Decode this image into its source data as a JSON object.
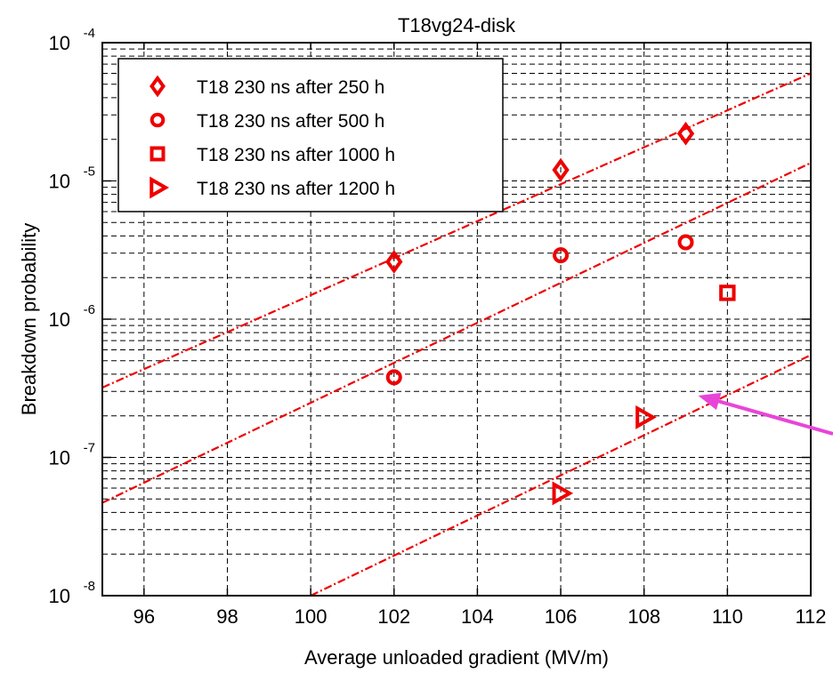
{
  "chart_data": {
    "type": "scatter",
    "title": "T18vg24-disk",
    "xlabel": "Average unloaded gradient (MV/m)",
    "ylabel": "Breakdown probability",
    "xlim": [
      95,
      112
    ],
    "ylim": [
      1e-08,
      0.0001
    ],
    "yscale": "log",
    "grid": true,
    "legend_position": "top-left",
    "x_ticks": [
      96,
      98,
      100,
      102,
      104,
      106,
      108,
      110,
      112
    ],
    "y_ticks": [
      {
        "value": 1e-08,
        "base": "10",
        "exp": "-8"
      },
      {
        "value": 1e-07,
        "base": "10",
        "exp": "-7"
      },
      {
        "value": 1e-06,
        "base": "10",
        "exp": "-6"
      },
      {
        "value": 1e-05,
        "base": "10",
        "exp": "-5"
      },
      {
        "value": 0.0001,
        "base": "10",
        "exp": "-4"
      }
    ],
    "series": [
      {
        "name": "T18 230 ns after 250 h",
        "marker": "diamond",
        "x": [
          102,
          106,
          109
        ],
        "y": [
          2.6e-06,
          1.2e-05,
          2.2e-05
        ]
      },
      {
        "name": "T18 230 ns after 500 h",
        "marker": "circle",
        "x": [
          102,
          106,
          109
        ],
        "y": [
          3.8e-07,
          2.9e-06,
          3.6e-06
        ]
      },
      {
        "name": "T18 230 ns after 1000 h",
        "marker": "square",
        "x": [
          110
        ],
        "y": [
          1.55e-06
        ]
      },
      {
        "name": "T18 230 ns after 1200 h",
        "marker": "triangle-right",
        "x": [
          106,
          108
        ],
        "y": [
          5.5e-08,
          1.95e-07
        ]
      }
    ],
    "fit_lines": [
      {
        "x": [
          95,
          112
        ],
        "y": [
          3.2e-07,
          6e-05
        ]
      },
      {
        "x": [
          95,
          112
        ],
        "y": [
          4.7e-08,
          1.35e-05
        ]
      },
      {
        "x": [
          100,
          112
        ],
        "y": [
          1e-08,
          5.5e-07
        ]
      }
    ],
    "annotations": [
      {
        "type": "arrow",
        "x": 109.3,
        "y": 2.8e-07
      }
    ],
    "color": "#ee0000",
    "arrow_color": "#e845d8"
  }
}
